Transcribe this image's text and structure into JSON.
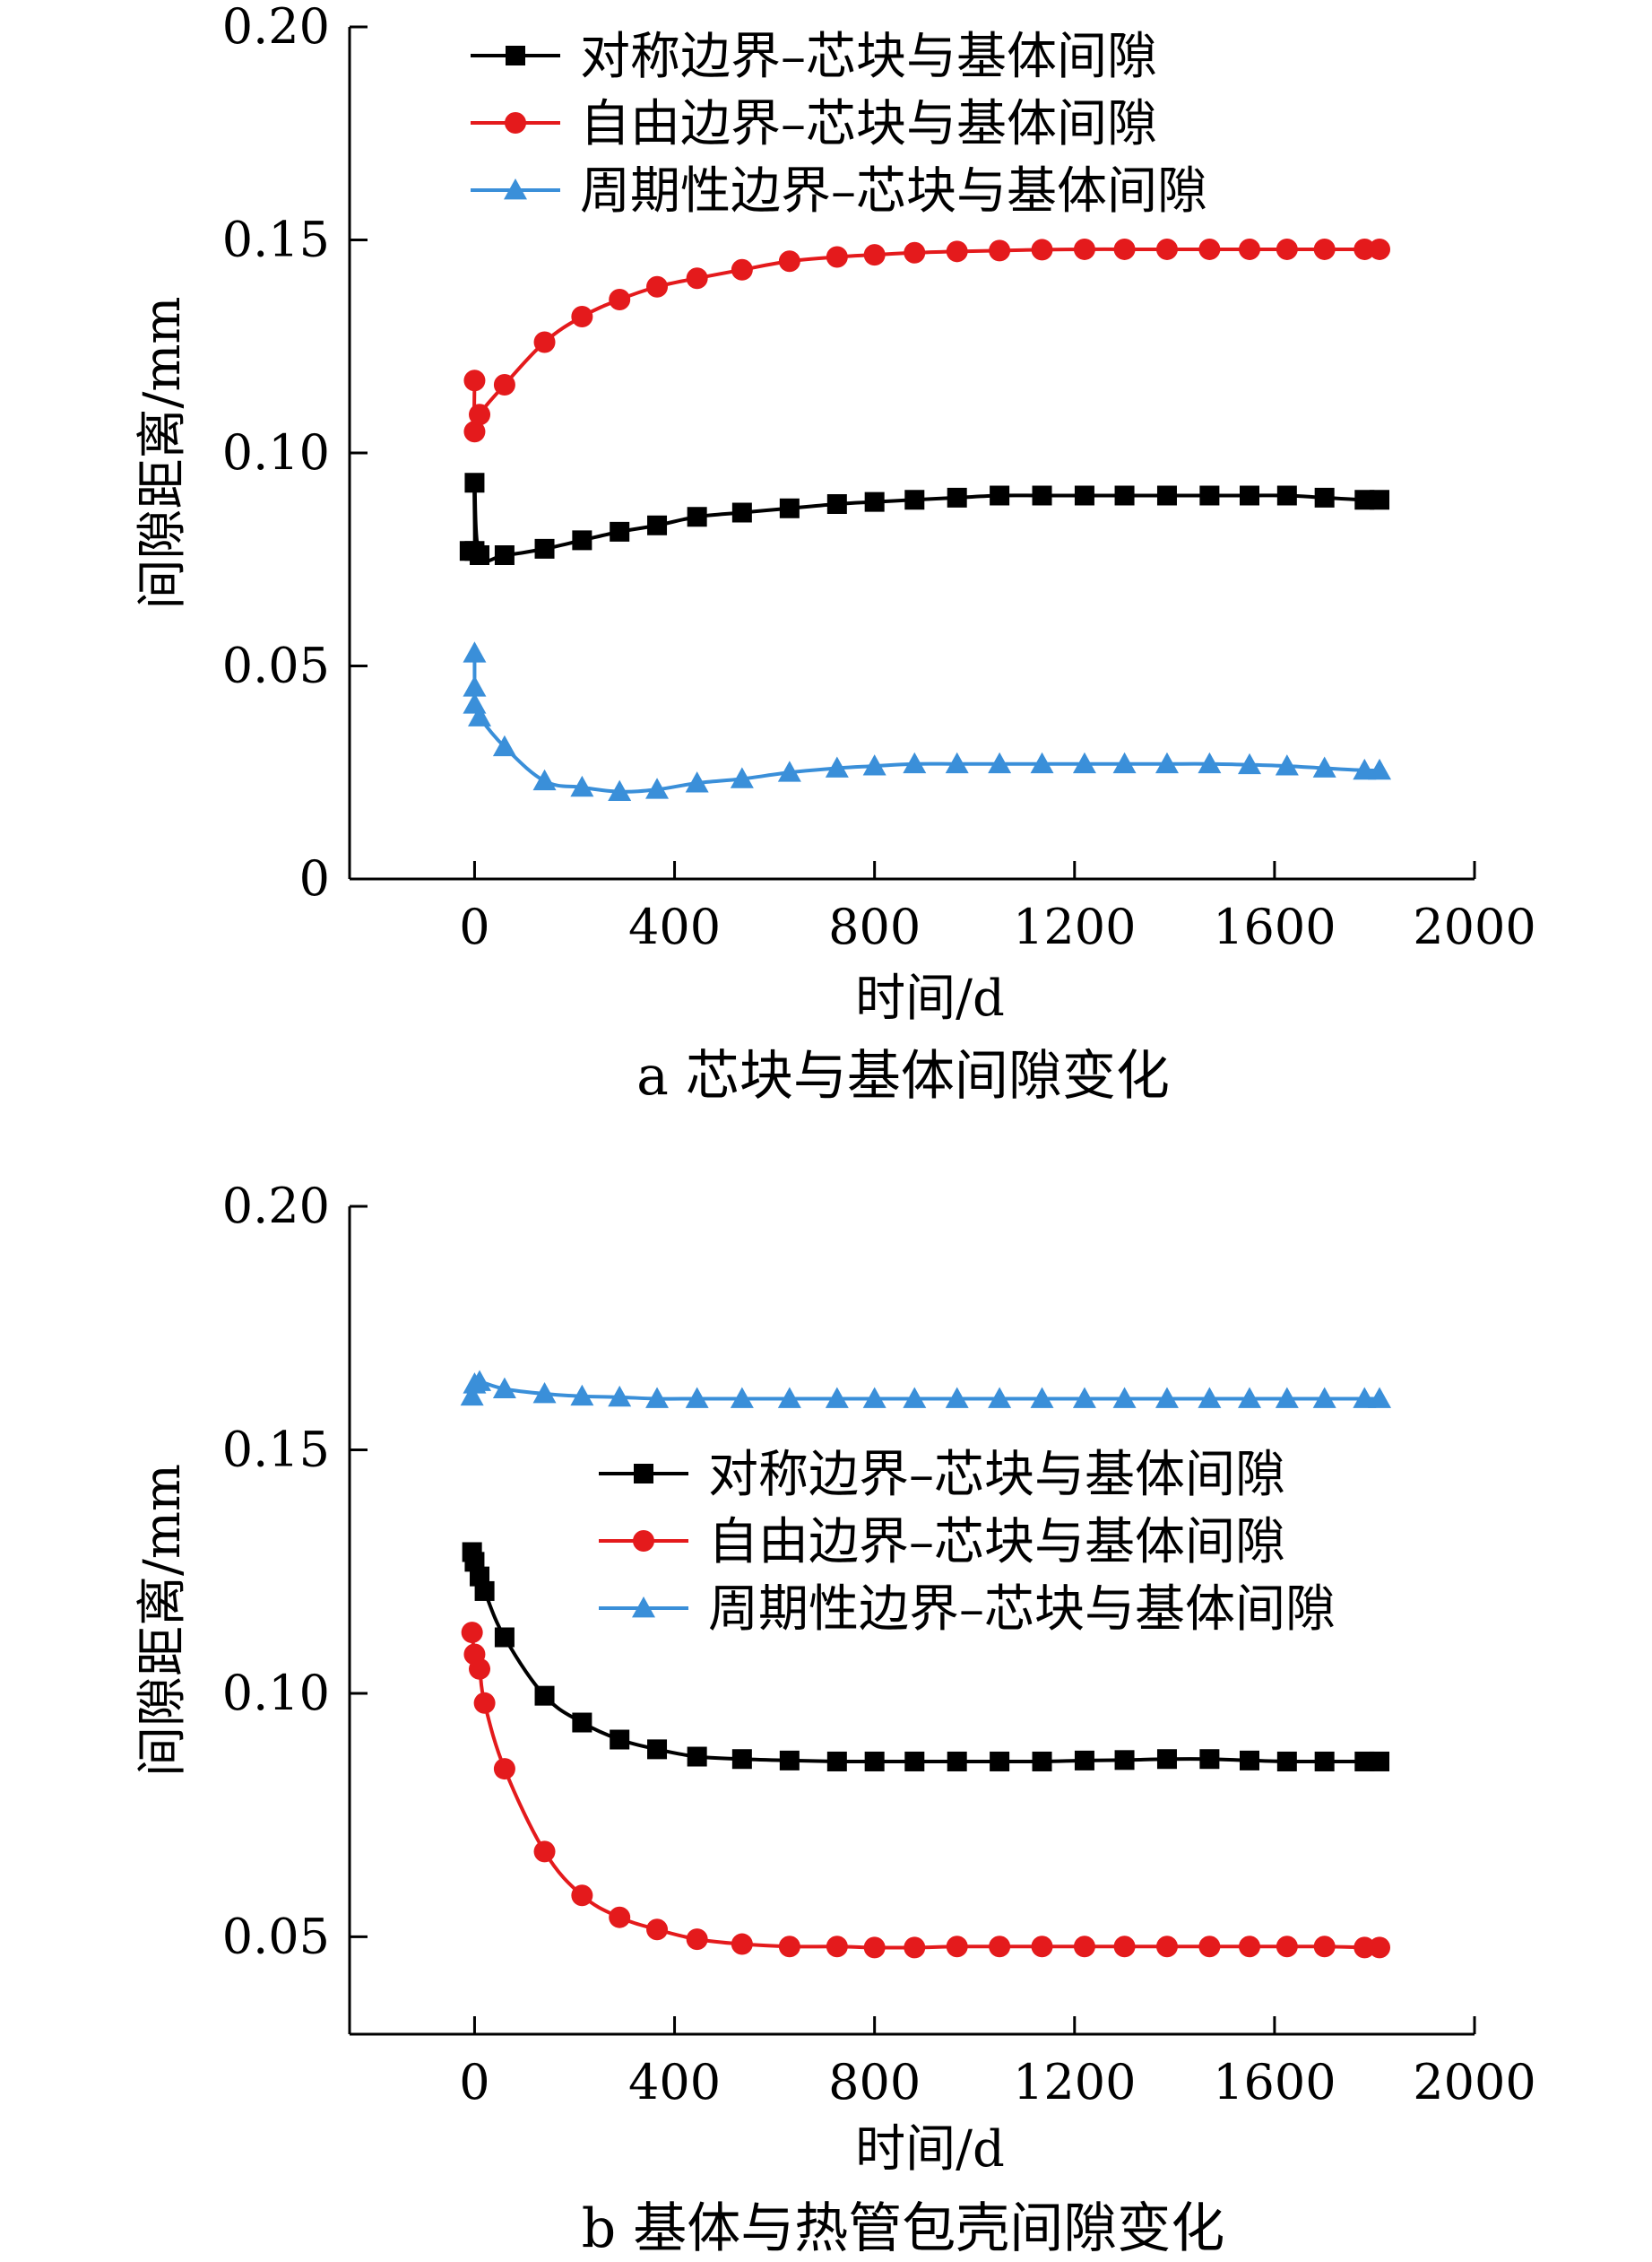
{
  "chart_data": [
    {
      "type": "line",
      "caption": "a  芯块与基体间隙变化",
      "xlabel": "时间/d",
      "ylabel": "间隙距离/mm",
      "xlim": [
        -250,
        2000
      ],
      "ylim": [
        0,
        0.2
      ],
      "xticks": [
        0,
        400,
        800,
        1200,
        1600,
        2000
      ],
      "yticks": [
        0,
        0.05,
        0.1,
        0.15,
        0.2
      ],
      "ytick_labels": [
        "0",
        "0.05",
        "0.10",
        "0.15",
        "0.20"
      ],
      "legend_position": "top",
      "series": [
        {
          "name": "对称边界–芯块与基体间隙",
          "color": "#000000",
          "marker": "square",
          "x": [
            -10,
            0,
            0,
            10,
            60,
            140,
            215,
            290,
            365,
            445,
            535,
            630,
            725,
            800,
            880,
            965,
            1050,
            1135,
            1220,
            1300,
            1385,
            1470,
            1550,
            1625,
            1700,
            1780,
            1810
          ],
          "y": [
            0.077,
            0.077,
            0.093,
            0.076,
            0.076,
            0.0775,
            0.0795,
            0.0815,
            0.083,
            0.085,
            0.086,
            0.087,
            0.088,
            0.0885,
            0.089,
            0.0895,
            0.09,
            0.09,
            0.09,
            0.09,
            0.09,
            0.09,
            0.09,
            0.09,
            0.0895,
            0.089,
            0.089
          ]
        },
        {
          "name": "自由边界–芯块与基体间隙",
          "color": "#e41a1c",
          "marker": "circle",
          "x": [
            0,
            0,
            10,
            60,
            140,
            215,
            290,
            365,
            445,
            535,
            630,
            725,
            800,
            880,
            965,
            1050,
            1135,
            1220,
            1300,
            1385,
            1470,
            1550,
            1625,
            1700,
            1780,
            1810
          ],
          "y": [
            0.117,
            0.105,
            0.109,
            0.116,
            0.126,
            0.132,
            0.136,
            0.139,
            0.141,
            0.143,
            0.145,
            0.146,
            0.1465,
            0.147,
            0.1473,
            0.1475,
            0.1477,
            0.1478,
            0.1478,
            0.1478,
            0.1478,
            0.1478,
            0.1478,
            0.1478,
            0.1478,
            0.1478
          ]
        },
        {
          "name": "周期性边界–芯块与基体间隙",
          "color": "#3a8fd9",
          "marker": "triangle",
          "x": [
            0,
            0,
            0,
            10,
            60,
            140,
            215,
            290,
            365,
            445,
            535,
            630,
            725,
            800,
            880,
            965,
            1050,
            1135,
            1220,
            1300,
            1385,
            1470,
            1550,
            1625,
            1700,
            1780,
            1810
          ],
          "y": [
            0.053,
            0.045,
            0.041,
            0.038,
            0.031,
            0.023,
            0.0215,
            0.0205,
            0.021,
            0.0225,
            0.0235,
            0.025,
            0.026,
            0.0265,
            0.027,
            0.027,
            0.027,
            0.027,
            0.027,
            0.027,
            0.027,
            0.027,
            0.0268,
            0.0265,
            0.026,
            0.0255,
            0.0255
          ]
        }
      ]
    },
    {
      "type": "line",
      "caption": "b  基体与热管包壳间隙变化",
      "xlabel": "时间/d",
      "ylabel": "间隙距离/mm",
      "xlim": [
        -250,
        2000
      ],
      "ylim": [
        0.03,
        0.2
      ],
      "xticks": [
        0,
        400,
        800,
        1200,
        1600,
        2000
      ],
      "yticks": [
        0.05,
        0.1,
        0.15,
        0.2
      ],
      "ytick_labels": [
        "0.05",
        "0.10",
        "0.15",
        "0.20"
      ],
      "legend_position": "middle-right",
      "series": [
        {
          "name": "对称边界–芯块与基体间隙",
          "color": "#000000",
          "marker": "square",
          "x": [
            -5,
            0,
            10,
            20,
            60,
            140,
            215,
            290,
            365,
            445,
            535,
            630,
            725,
            800,
            880,
            965,
            1050,
            1135,
            1220,
            1300,
            1385,
            1470,
            1550,
            1625,
            1700,
            1780,
            1810
          ],
          "y": [
            0.129,
            0.127,
            0.124,
            0.121,
            0.1115,
            0.0995,
            0.094,
            0.0905,
            0.0885,
            0.087,
            0.0865,
            0.0862,
            0.086,
            0.086,
            0.086,
            0.086,
            0.086,
            0.086,
            0.0862,
            0.0863,
            0.0865,
            0.0865,
            0.0862,
            0.086,
            0.086,
            0.086,
            0.086
          ]
        },
        {
          "name": "自由边界–芯块与基体间隙",
          "color": "#e41a1c",
          "marker": "circle",
          "x": [
            -5,
            0,
            10,
            20,
            60,
            140,
            215,
            290,
            365,
            445,
            535,
            630,
            725,
            800,
            880,
            965,
            1050,
            1135,
            1220,
            1300,
            1385,
            1470,
            1550,
            1625,
            1700,
            1780,
            1810
          ],
          "y": [
            0.1125,
            0.108,
            0.105,
            0.098,
            0.0845,
            0.0675,
            0.0585,
            0.054,
            0.0515,
            0.0495,
            0.0485,
            0.048,
            0.048,
            0.0478,
            0.0478,
            0.048,
            0.048,
            0.048,
            0.048,
            0.048,
            0.048,
            0.048,
            0.048,
            0.048,
            0.048,
            0.0478,
            0.0478
          ]
        },
        {
          "name": "周期性边界–芯块与基体间隙",
          "color": "#3a8fd9",
          "marker": "triangle",
          "x": [
            -5,
            0,
            10,
            60,
            140,
            215,
            290,
            365,
            445,
            535,
            630,
            725,
            800,
            880,
            965,
            1050,
            1135,
            1220,
            1300,
            1385,
            1470,
            1550,
            1625,
            1700,
            1780,
            1810
          ],
          "y": [
            0.161,
            0.1635,
            0.164,
            0.1625,
            0.1615,
            0.161,
            0.1608,
            0.1605,
            0.1605,
            0.1605,
            0.1605,
            0.1605,
            0.1605,
            0.1605,
            0.1605,
            0.1605,
            0.1605,
            0.1605,
            0.1605,
            0.1605,
            0.1605,
            0.1605,
            0.1605,
            0.1605,
            0.1605,
            0.1605
          ]
        }
      ]
    }
  ]
}
